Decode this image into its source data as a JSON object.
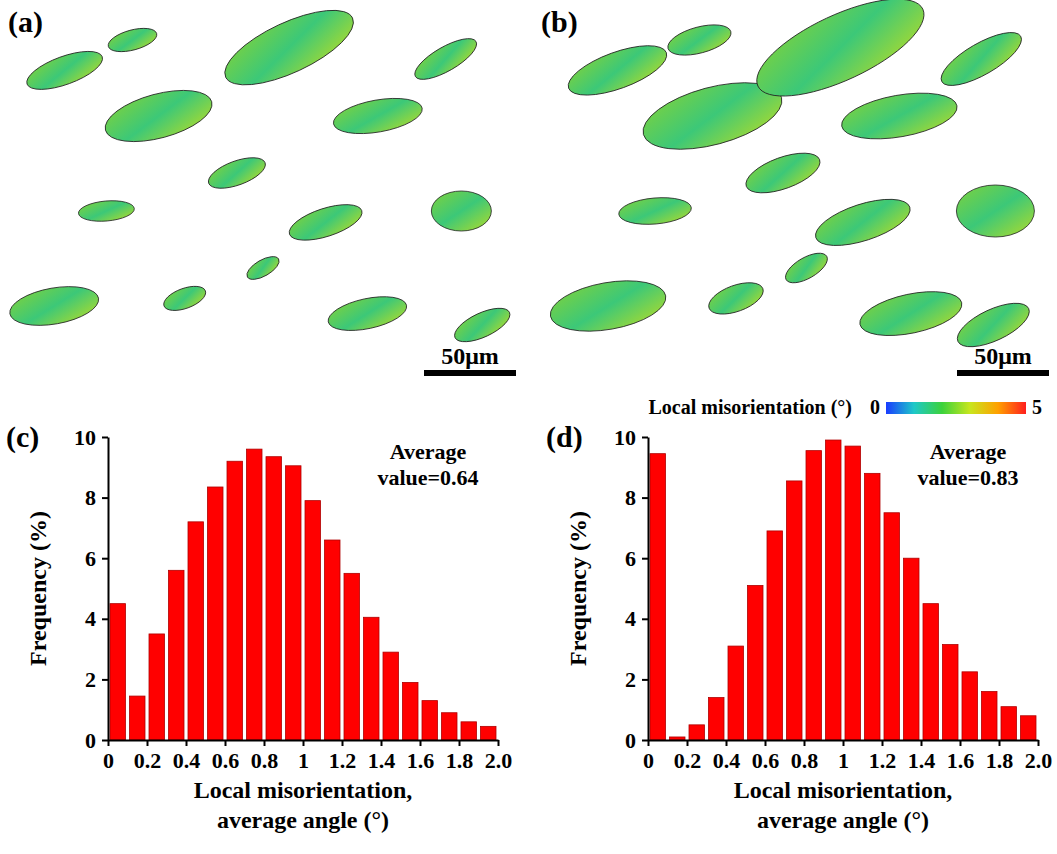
{
  "chart_data": [
    {
      "type": "histogram",
      "panel_label": "(c)",
      "annotation": "Average value=0.64",
      "x_label": "Local misorientation, average angle (°)",
      "y_label": "Frequency (%)",
      "bins": [
        0,
        0.1,
        0.2,
        0.3,
        0.4,
        0.5,
        0.6,
        0.7,
        0.8,
        0.9,
        1.0,
        1.1,
        1.2,
        1.3,
        1.4,
        1.5,
        1.6,
        1.7,
        1.8,
        1.9,
        2.0
      ],
      "values": [
        4.5,
        1.45,
        3.5,
        5.6,
        7.2,
        8.35,
        9.2,
        9.6,
        9.35,
        9.05,
        7.9,
        6.6,
        5.5,
        4.05,
        2.9,
        1.9,
        1.3,
        0.9,
        0.6,
        0.45
      ],
      "color": "#ff0000",
      "xlim": [
        0,
        2
      ],
      "xticks": [
        0,
        0.2,
        0.4,
        0.6,
        0.8,
        1,
        {
          "value": 1.2,
          "label": "1.2"
        },
        1.4,
        1.6,
        1.8,
        {
          "value": 2,
          "label": "2.0"
        }
      ],
      "ylim": [
        0,
        10
      ],
      "yticks": [
        0,
        2,
        4,
        6,
        8,
        10
      ]
    },
    {
      "type": "histogram",
      "panel_label": "(d)",
      "annotation": "Average value=0.83",
      "x_label": "Local misorientation, average angle (°)",
      "y_label": "Frequency (%)",
      "bins": [
        0,
        0.1,
        0.2,
        0.3,
        0.4,
        0.5,
        0.6,
        0.7,
        0.8,
        0.9,
        1.0,
        1.1,
        1.2,
        1.3,
        1.4,
        1.5,
        1.6,
        1.7,
        1.8,
        1.9,
        2.0
      ],
      "values": [
        9.45,
        0.1,
        0.5,
        1.4,
        3.1,
        5.1,
        6.9,
        8.55,
        9.55,
        9.9,
        9.7,
        8.8,
        7.5,
        6.0,
        4.5,
        3.15,
        2.25,
        1.6,
        1.1,
        0.8
      ],
      "color": "#ff0000",
      "xlim": [
        0,
        2
      ],
      "xticks": [
        0,
        0.2,
        0.4,
        0.6,
        0.8,
        1,
        {
          "value": 1.2,
          "label": "1.2"
        },
        1.4,
        1.6,
        1.8,
        {
          "value": 2,
          "label": "2.0"
        }
      ],
      "ylim": [
        0,
        10
      ],
      "yticks": [
        0,
        2,
        4,
        6,
        8,
        10
      ]
    }
  ],
  "maps": [
    {
      "panel_label": "(a)",
      "scale_bar": "50μm"
    },
    {
      "panel_label": "(b)",
      "scale_bar": "50μm"
    }
  ],
  "colorbar": {
    "label": "Local misorientation (°)",
    "range": [
      0,
      5
    ],
    "ticks": [
      0,
      5
    ]
  }
}
